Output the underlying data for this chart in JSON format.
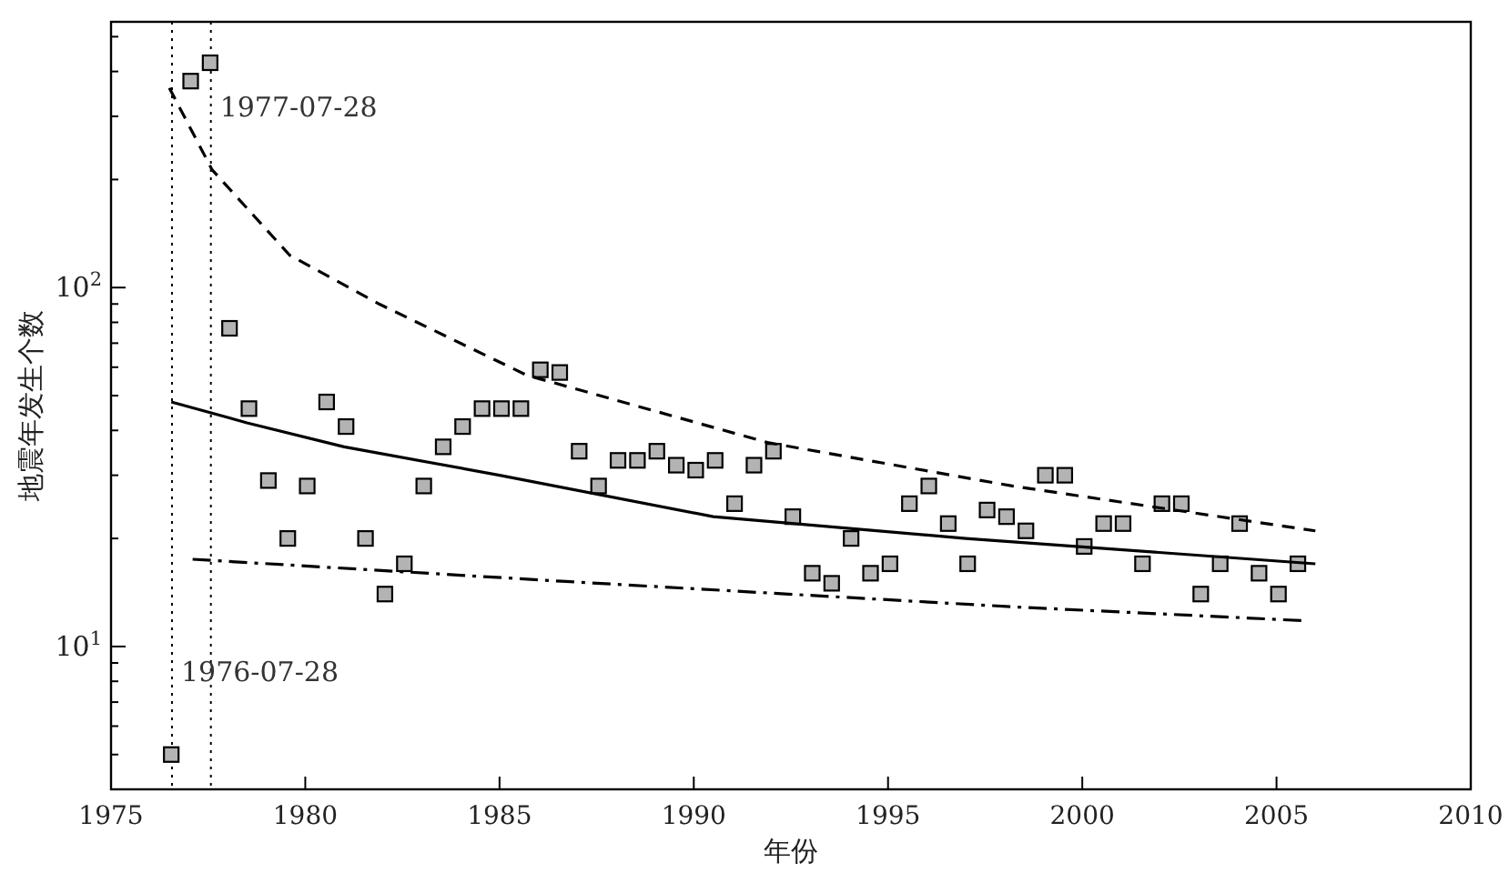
{
  "chart_data": {
    "type": "scatter",
    "xlabel": "年份",
    "ylabel": "地震年发生个数",
    "xlim": [
      1975,
      2010
    ],
    "xticks": [
      1975,
      1980,
      1985,
      1990,
      1995,
      2000,
      2005,
      2010
    ],
    "ylim": [
      4,
      550
    ],
    "log": "y",
    "yticks": [
      {
        "value": 5,
        "label": null
      },
      {
        "value": 6,
        "label": null
      },
      {
        "value": 7,
        "label": null
      },
      {
        "value": 8,
        "label": null
      },
      {
        "value": 9,
        "label": null
      },
      {
        "value": 10,
        "label": "10$^{1}$"
      },
      {
        "value": 20,
        "label": null
      },
      {
        "value": 30,
        "label": null
      },
      {
        "value": 40,
        "label": null
      },
      {
        "value": 50,
        "label": null
      },
      {
        "value": 60,
        "label": null
      },
      {
        "value": 70,
        "label": null
      },
      {
        "value": 80,
        "label": null
      },
      {
        "value": 90,
        "label": null
      },
      {
        "value": 100,
        "label": "10$^{2}$"
      },
      {
        "value": 200,
        "label": null
      },
      {
        "value": 300,
        "label": null
      },
      {
        "value": 400,
        "label": null
      },
      {
        "value": 500,
        "label": null
      }
    ],
    "grid": false,
    "series": [
      {
        "type": "scatter",
        "marker": "square",
        "color": "#b3b3b3",
        "x": [
          1976.55,
          1977.05,
          1977.55,
          1978.05,
          1978.55,
          1979.05,
          1979.55,
          1980.05,
          1980.55,
          1981.05,
          1981.55,
          1982.05,
          1982.55,
          1983.05,
          1983.55,
          1984.05,
          1984.55,
          1985.05,
          1985.55,
          1986.05,
          1986.55,
          1987.05,
          1987.55,
          1988.05,
          1988.55,
          1989.05,
          1989.55,
          1990.05,
          1990.55,
          1991.05,
          1991.55,
          1992.05,
          1992.55,
          1993.05,
          1993.55,
          1994.05,
          1994.55,
          1995.05,
          1995.55,
          1996.05,
          1996.55,
          1997.05,
          1997.55,
          1998.05,
          1998.55,
          1999.05,
          1999.55,
          2000.05,
          2000.55,
          2001.05,
          2001.55,
          2002.05,
          2002.55,
          2003.05,
          2003.55,
          2004.05,
          2004.55,
          2005.05,
          2005.55
        ],
        "values": [
          5,
          376,
          423,
          77,
          46,
          29,
          20,
          28,
          48,
          41,
          20,
          14,
          17,
          28,
          36,
          41,
          46,
          46,
          46,
          59,
          58,
          35,
          28,
          33,
          33,
          35,
          32,
          31,
          33,
          25,
          32,
          35,
          23,
          16,
          15,
          20,
          16,
          17,
          25,
          28,
          22,
          17,
          24,
          23,
          21,
          30,
          30,
          19,
          22,
          22,
          17,
          25,
          25,
          14,
          17,
          22,
          16,
          14,
          17
        ]
      },
      {
        "type": "line",
        "line_style": "solid",
        "color": "#000000",
        "x": [
          1976.55,
          1978.5,
          1981,
          1985,
          1990.5,
          1997,
          2006
        ],
        "values": [
          48,
          42,
          36,
          30,
          23,
          20,
          17
        ]
      },
      {
        "type": "line",
        "line_style": "dashed",
        "color": "#000000",
        "x": [
          1976.5,
          1977.6,
          1979.6,
          1981.9,
          1985.7,
          1991.9,
          1998.2,
          2006
        ],
        "values": [
          360,
          213,
          123,
          90,
          57,
          37,
          28,
          21
        ]
      },
      {
        "type": "line",
        "line_style": "dashdot",
        "color": "#000000",
        "x": [
          1977.1,
          1986.6,
          1998.2,
          2005.7
        ],
        "values": [
          17.5,
          15.2,
          12.9,
          11.8
        ]
      }
    ],
    "ref_lines": [
      {
        "axis": "x",
        "value": 1976.57,
        "line_style": "dotted",
        "color": "#000000"
      },
      {
        "axis": "x",
        "value": 1977.57,
        "line_style": "dotted",
        "color": "#000000"
      }
    ],
    "annotations": [
      {
        "text": "1976-07-28",
        "x": 1976.57,
        "y": 8
      },
      {
        "text": "1977-07-28",
        "x": 1977.57,
        "y": 300
      }
    ]
  }
}
